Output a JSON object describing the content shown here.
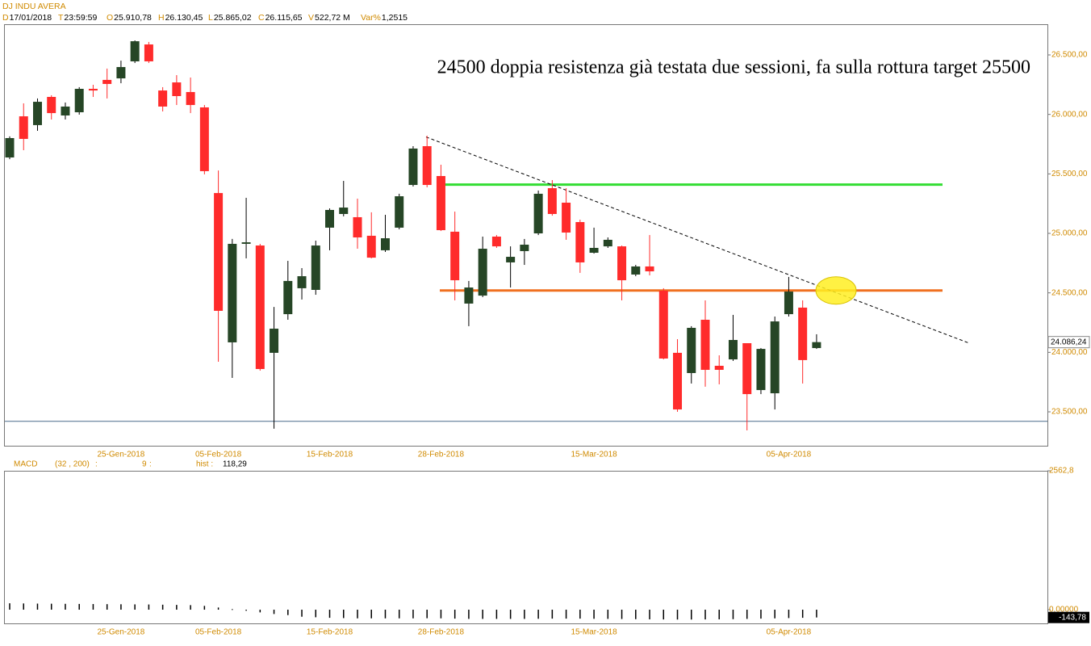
{
  "header": {
    "symbol": "DJ INDU AVERA",
    "fields": [
      {
        "key": "D",
        "value": "17/01/2018"
      },
      {
        "key": "T",
        "value": "23:59:59"
      },
      {
        "key": "O",
        "value": "25.910,78"
      },
      {
        "key": "H",
        "value": "26.130,45"
      },
      {
        "key": "L",
        "value": "25.865,02"
      },
      {
        "key": "C",
        "value": "26.115,65"
      },
      {
        "key": "V",
        "value": "522,72 M"
      },
      {
        "key": "Var%",
        "value": "1,2515"
      }
    ]
  },
  "chart_data": [
    {
      "type": "candlestick",
      "annotation": "24500 doppia resistenza già testata due sessioni, fa sulla rottura target 25500",
      "categories": [
        null,
        null,
        null,
        null,
        null,
        null,
        null,
        null,
        "25-Gen-2018",
        null,
        null,
        null,
        null,
        null,
        null,
        "05-Feb-2018",
        null,
        null,
        null,
        null,
        null,
        null,
        null,
        "15-Feb-2018",
        null,
        null,
        null,
        null,
        null,
        null,
        null,
        "28-Feb-2018",
        null,
        null,
        null,
        null,
        null,
        null,
        null,
        null,
        null,
        null,
        "15-Mar-2018",
        null,
        null,
        null,
        null,
        null,
        null,
        null,
        null,
        null,
        null,
        null,
        null,
        null,
        "05-Apr-2018",
        null,
        null
      ],
      "open": [
        25638,
        25984,
        25910,
        26147,
        25991,
        26018,
        26215,
        26290,
        26303,
        26446,
        26588,
        26201,
        26269,
        26188,
        26059,
        25339,
        24084,
        24912,
        24898,
        23996,
        24321,
        24539,
        24525,
        25048,
        25163,
        25136,
        24980,
        24858,
        25048,
        25407,
        25733,
        25482,
        25014,
        24410,
        24477,
        24973,
        24756,
        24851,
        25000,
        25380,
        25258,
        25095,
        24837,
        24891,
        24891,
        24654,
        24722,
        24518,
        23996,
        23826,
        24274,
        23887,
        23941,
        24077,
        23683,
        23656,
        24321,
        24376,
        24036
      ],
      "high": [
        25815,
        26093,
        26134,
        26161,
        26100,
        26229,
        26249,
        26385,
        26452,
        26622,
        26609,
        26229,
        26330,
        26310,
        26079,
        25529,
        24953,
        25299,
        24912,
        24382,
        24769,
        24708,
        24939,
        25210,
        25441,
        25292,
        25177,
        25156,
        25333,
        25733,
        25821,
        25577,
        25183,
        24600,
        24973,
        24986,
        24891,
        24953,
        25360,
        25448,
        25380,
        25115,
        25048,
        24966,
        24898,
        24735,
        24986,
        24539,
        24111,
        24220,
        24437,
        23975,
        24315,
        24077,
        24036,
        24301,
        24634,
        24437,
        24152
      ],
      "low": [
        25624,
        25699,
        25862,
        25957,
        25957,
        25998,
        26147,
        26134,
        26262,
        26432,
        26432,
        26025,
        26079,
        26011,
        25496,
        23921,
        23785,
        24790,
        23846,
        23358,
        24274,
        24444,
        24484,
        24858,
        25143,
        24871,
        24790,
        24844,
        25034,
        25394,
        25387,
        25020,
        24437,
        24220,
        24464,
        24878,
        24545,
        24735,
        24986,
        25149,
        24946,
        24668,
        24830,
        24878,
        24437,
        24640,
        24647,
        23941,
        23500,
        23738,
        23711,
        23731,
        23928,
        23344,
        23649,
        23520,
        24301,
        23738,
        24029
      ],
      "close": [
        25801,
        25794,
        26106,
        26011,
        26066,
        26215,
        26201,
        26256,
        26398,
        26615,
        26446,
        26066,
        26154,
        26079,
        25523,
        24349,
        24912,
        24925,
        23860,
        24199,
        24600,
        24640,
        24898,
        25197,
        25217,
        24966,
        24796,
        24959,
        25312,
        25713,
        25407,
        25027,
        24606,
        24545,
        24871,
        24891,
        24803,
        24905,
        25333,
        25163,
        25007,
        24756,
        24878,
        24946,
        24606,
        24722,
        24681,
        23948,
        23520,
        24206,
        23853,
        23853,
        24104,
        23649,
        24029,
        24260,
        24511,
        23935,
        24086
      ],
      "last_value_label": "24.086,24",
      "up_color": "#264626",
      "down_color": "#ff2b2b",
      "ylim": [
        23215,
        26758
      ],
      "yticks": [
        {
          "value": 26500,
          "label": "26.500,00"
        },
        {
          "value": 26000,
          "label": "26.000,00"
        },
        {
          "value": 25500,
          "label": "25.500,00"
        },
        {
          "value": 25000,
          "label": "25.000,00"
        },
        {
          "value": 24500,
          "label": "24.500,00"
        },
        {
          "value": 24000,
          "label": "24.000,00"
        },
        {
          "value": 23500,
          "label": "23.500,00"
        }
      ],
      "levels": [
        {
          "value": 25410,
          "color": "#33dd33"
        },
        {
          "value": 24520,
          "color": "#f07020"
        },
        {
          "value": 23420,
          "color": "#4a6a8a"
        }
      ],
      "trendline": {
        "values": [
          25810,
          24080
        ],
        "color": "#000000"
      },
      "highlight": {
        "value": 24520,
        "color": "#ffee22"
      }
    },
    {
      "type": "histogram",
      "legend": [
        "MACD",
        "(32 , 200)",
        ":",
        "9",
        ":",
        "hist :",
        "118,29"
      ],
      "categories": [
        null,
        null,
        null,
        null,
        null,
        null,
        null,
        null,
        "25-Gen-2018",
        null,
        null,
        null,
        null,
        null,
        null,
        "05-Feb-2018",
        null,
        null,
        null,
        null,
        null,
        null,
        null,
        "15-Feb-2018",
        null,
        null,
        null,
        null,
        null,
        null,
        null,
        "28-Feb-2018",
        null,
        null,
        null,
        null,
        null,
        null,
        null,
        null,
        null,
        null,
        "15-Mar-2018",
        null,
        null,
        null,
        null,
        null,
        null,
        null,
        null,
        null,
        null,
        null,
        null,
        null,
        "05-Apr-2018",
        null,
        null
      ],
      "values": [
        118,
        115,
        112,
        110,
        108,
        106,
        104,
        102,
        100,
        98,
        96,
        92,
        88,
        84,
        70,
        40,
        10,
        -20,
        -50,
        -80,
        -100,
        -130,
        -140,
        -150,
        -155,
        -160,
        -160,
        -160,
        -160,
        -160,
        -158,
        -160,
        -165,
        -170,
        -170,
        -170,
        -170,
        -170,
        -168,
        -165,
        -165,
        -165,
        -168,
        -170,
        -172,
        -175,
        -178,
        -180,
        -182,
        -182,
        -180,
        -178,
        -175,
        -170,
        -165,
        -160,
        -155,
        -150,
        -143.78
      ],
      "last_value_label": "-143,78",
      "color": "#000000",
      "ylim": [
        -253,
        2562.8
      ],
      "yticks": [
        {
          "value": 2562.8,
          "label": "2562,8"
        },
        {
          "value": 0,
          "label": "0,00000"
        }
      ]
    }
  ]
}
